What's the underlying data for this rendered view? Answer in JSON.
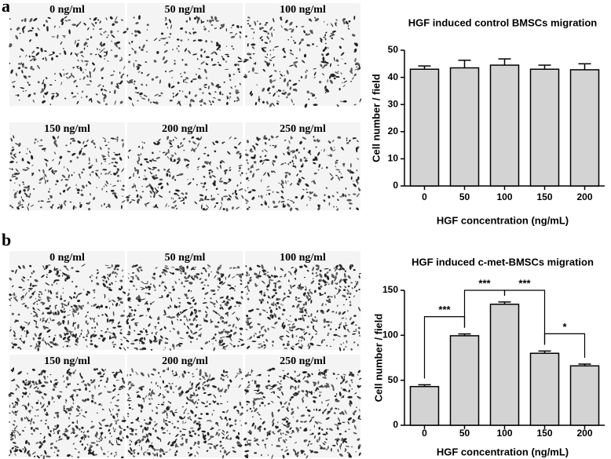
{
  "panels": [
    {
      "letter": "a",
      "image_labels": [
        "0 ng/ml",
        "50 ng/ml",
        "100 ng/ml",
        "150 ng/ml",
        "200 ng/ml",
        "250 ng/ml"
      ]
    },
    {
      "letter": "b",
      "image_labels": [
        "0 ng/ml",
        "50 ng/ml",
        "100 ng/ml",
        "150 ng/ml",
        "200 ng/ml",
        "250 ng/ml"
      ]
    }
  ],
  "chart_data": [
    {
      "type": "bar",
      "title": "HGF induced control BMSCs migration",
      "x_label": "HGF concentration (ng/mL)",
      "y_label": "Cell number / field",
      "categories": [
        "0",
        "50",
        "100",
        "150",
        "200"
      ],
      "values": [
        43,
        43.5,
        44.5,
        43,
        42.8
      ],
      "errors": [
        1.2,
        2.8,
        2.3,
        1.5,
        2.2
      ],
      "color": "#d3d3d3",
      "ylim": [
        0,
        50
      ],
      "yticks": [
        0,
        10,
        20,
        30,
        40,
        50
      ]
    },
    {
      "type": "bar",
      "title": "HGF induced c-met-BMSCs migration",
      "x_label": "HGF concentration (ng/mL)",
      "y_label": "Cell number / field",
      "categories": [
        "0",
        "50",
        "100",
        "150",
        "200"
      ],
      "values": [
        43,
        99.5,
        134.5,
        80,
        66
      ],
      "errors": [
        2,
        2,
        2.5,
        2.5,
        2
      ],
      "color": "#d3d3d3",
      "ylim": [
        0,
        150
      ],
      "yticks": [
        0,
        50,
        100,
        150
      ],
      "annotations": [
        {
          "between": [
            0,
            1
          ],
          "label": "***"
        },
        {
          "between": [
            1,
            2
          ],
          "label": "***"
        },
        {
          "between": [
            2,
            3
          ],
          "label": "***"
        },
        {
          "between": [
            3,
            4
          ],
          "label": "*"
        }
      ]
    }
  ]
}
